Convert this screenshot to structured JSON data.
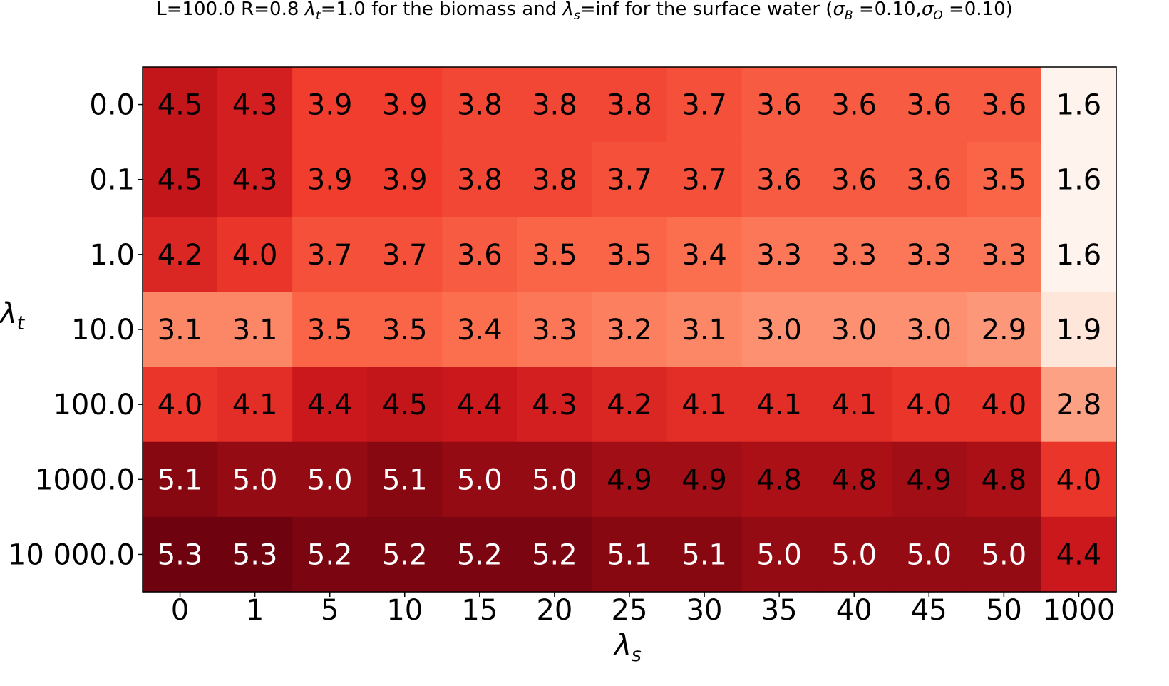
{
  "chart_data": {
    "type": "heatmap",
    "title_parts": {
      "lead": "L=100.0 R=0.8 ",
      "lt_sym": "λ",
      "lt_sub": "t",
      "mid1": "=1.0 for the biomass and ",
      "ls_sym": "λ",
      "ls_sub": "s",
      "mid2": "=inf for the surface water (",
      "sb_sym": "σ",
      "sb_sub": "B",
      "mid3": " =0.10,",
      "so_sym": "σ",
      "so_sub": "O",
      "end": " =0.10)"
    },
    "xlabel": {
      "sym": "λ",
      "sub": "s"
    },
    "ylabel": {
      "sym": "λ",
      "sub": "t"
    },
    "x_categories": [
      "0",
      "1",
      "5",
      "10",
      "15",
      "20",
      "25",
      "30",
      "35",
      "40",
      "45",
      "50",
      "1000"
    ],
    "y_categories": [
      "0.0",
      "0.1",
      "1.0",
      "10.0",
      "100.0",
      "1000.0",
      "10 000.0"
    ],
    "values": [
      [
        4.5,
        4.3,
        3.9,
        3.9,
        3.8,
        3.8,
        3.8,
        3.7,
        3.6,
        3.6,
        3.6,
        3.6,
        1.6
      ],
      [
        4.5,
        4.3,
        3.9,
        3.9,
        3.8,
        3.8,
        3.7,
        3.7,
        3.6,
        3.6,
        3.6,
        3.5,
        1.6
      ],
      [
        4.2,
        4.0,
        3.7,
        3.7,
        3.6,
        3.5,
        3.5,
        3.4,
        3.3,
        3.3,
        3.3,
        3.3,
        1.6
      ],
      [
        3.1,
        3.1,
        3.5,
        3.5,
        3.4,
        3.3,
        3.2,
        3.1,
        3.0,
        3.0,
        3.0,
        2.9,
        1.9
      ],
      [
        4.0,
        4.1,
        4.4,
        4.5,
        4.4,
        4.3,
        4.2,
        4.1,
        4.1,
        4.1,
        4.0,
        4.0,
        2.8
      ],
      [
        5.1,
        5.0,
        5.0,
        5.1,
        5.0,
        5.0,
        4.9,
        4.9,
        4.8,
        4.8,
        4.9,
        4.8,
        4.0
      ],
      [
        5.3,
        5.3,
        5.2,
        5.2,
        5.2,
        5.2,
        5.1,
        5.1,
        5.0,
        5.0,
        5.0,
        5.0,
        4.4
      ]
    ],
    "colormap": "Reds",
    "color_range": [
      1.55,
      5.35
    ],
    "colorbar": false,
    "grid": false
  }
}
